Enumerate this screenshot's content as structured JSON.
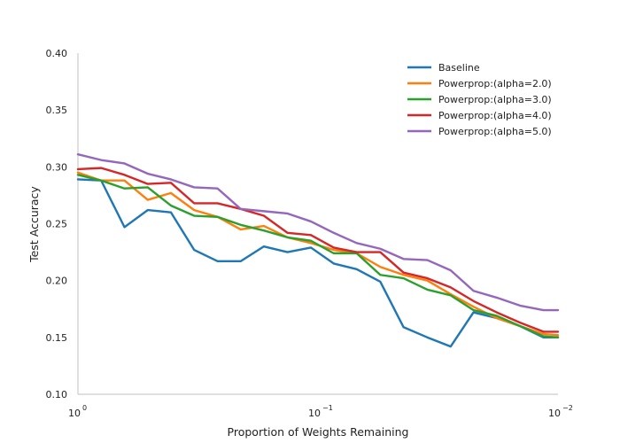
{
  "chart_data": {
    "type": "line",
    "xscale": "log",
    "xlim": [
      1.0,
      0.01
    ],
    "ylim": [
      0.1,
      0.4
    ],
    "xlabel": "Proportion of Weights Remaining",
    "ylabel": "Test Accuracy",
    "yticks": [
      "0.10",
      "0.15",
      "0.20",
      "0.25",
      "0.30",
      "0.35",
      "0.40"
    ],
    "xticks": [
      {
        "value": 1,
        "label": "10",
        "exp": "0"
      },
      {
        "value": 0.1,
        "label": "10",
        "exp": "−1"
      },
      {
        "value": 0.01,
        "label": "10",
        "exp": "−2"
      }
    ],
    "grid": false,
    "legend_position": "top-right",
    "x": [
      1.0,
      0.8,
      0.64,
      0.512,
      0.41,
      0.328,
      0.262,
      0.21,
      0.168,
      0.134,
      0.107,
      0.086,
      0.069,
      0.055,
      0.044,
      0.035,
      0.028,
      0.0225,
      0.018,
      0.0144,
      0.0115,
      0.01
    ],
    "series": [
      {
        "name": "Baseline",
        "color": "#1f77b4",
        "values": [
          0.289,
          0.288,
          0.247,
          0.262,
          0.26,
          0.227,
          0.217,
          0.217,
          0.23,
          0.225,
          0.229,
          0.215,
          0.21,
          0.199,
          0.159,
          0.15,
          0.142,
          0.172,
          0.167,
          0.16,
          0.15,
          0.15
        ]
      },
      {
        "name": "Powerprop:(alpha=2.0)",
        "color": "#ff7f0e",
        "values": [
          0.295,
          0.288,
          0.288,
          0.271,
          0.277,
          0.262,
          0.256,
          0.245,
          0.248,
          0.238,
          0.233,
          0.227,
          0.224,
          0.212,
          0.205,
          0.2,
          0.188,
          0.177,
          0.167,
          0.16,
          0.153,
          0.152
        ]
      },
      {
        "name": "Powerprop:(alpha=3.0)",
        "color": "#2ca02c",
        "values": [
          0.293,
          0.288,
          0.281,
          0.282,
          0.266,
          0.257,
          0.256,
          0.249,
          0.244,
          0.238,
          0.235,
          0.224,
          0.224,
          0.205,
          0.202,
          0.192,
          0.187,
          0.174,
          0.169,
          0.16,
          0.151,
          0.15
        ]
      },
      {
        "name": "Powerprop:(alpha=4.0)",
        "color": "#d62728",
        "values": [
          0.298,
          0.299,
          0.293,
          0.285,
          0.286,
          0.268,
          0.268,
          0.263,
          0.257,
          0.242,
          0.24,
          0.229,
          0.225,
          0.225,
          0.207,
          0.202,
          0.194,
          0.182,
          0.172,
          0.163,
          0.155,
          0.155
        ]
      },
      {
        "name": "Powerprop:(alpha=5.0)",
        "color": "#9467bd",
        "values": [
          0.311,
          0.306,
          0.303,
          0.294,
          0.289,
          0.282,
          0.281,
          0.263,
          0.261,
          0.259,
          0.252,
          0.242,
          0.233,
          0.228,
          0.219,
          0.218,
          0.209,
          0.191,
          0.185,
          0.178,
          0.174,
          0.174
        ]
      }
    ]
  }
}
